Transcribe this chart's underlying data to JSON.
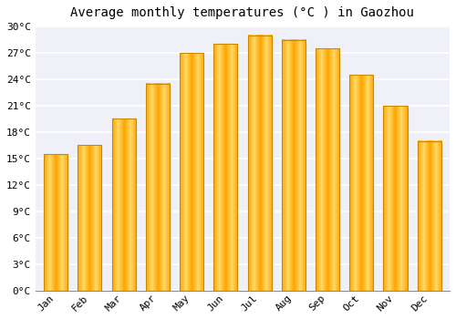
{
  "title": "Average monthly temperatures (°C ) in Gaozhou",
  "months": [
    "Jan",
    "Feb",
    "Mar",
    "Apr",
    "May",
    "Jun",
    "Jul",
    "Aug",
    "Sep",
    "Oct",
    "Nov",
    "Dec"
  ],
  "temperatures": [
    15.5,
    16.5,
    19.5,
    23.5,
    27.0,
    28.0,
    29.0,
    28.5,
    27.5,
    24.5,
    21.0,
    17.0
  ],
  "ylim": [
    0,
    30
  ],
  "yticks": [
    0,
    3,
    6,
    9,
    12,
    15,
    18,
    21,
    24,
    27,
    30
  ],
  "ytick_labels": [
    "0°C",
    "3°C",
    "6°C",
    "9°C",
    "12°C",
    "15°C",
    "18°C",
    "21°C",
    "24°C",
    "27°C",
    "30°C"
  ],
  "bar_color_center": "#FFD966",
  "bar_color_edge": "#FFA500",
  "bar_border_color": "#CC8800",
  "background_color": "#ffffff",
  "plot_bg_color": "#f0f0f8",
  "grid_color": "#ffffff",
  "title_fontsize": 10,
  "tick_fontsize": 8,
  "bar_width": 0.7
}
